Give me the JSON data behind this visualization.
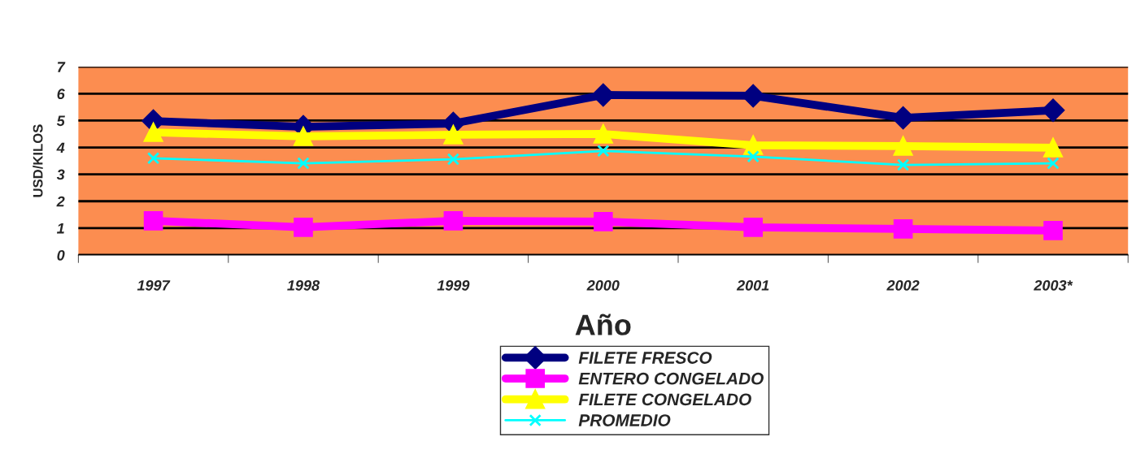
{
  "chart_data": {
    "type": "line",
    "xlabel": "Año",
    "ylabel": "USD/KILOS",
    "categories": [
      "1997",
      "1998",
      "1999",
      "2000",
      "2001",
      "2002",
      "2003*"
    ],
    "series": [
      {
        "name": "FILETE FRESCO",
        "color": "#000080",
        "marker": "diamond",
        "values": [
          4.98,
          4.77,
          4.89,
          5.95,
          5.92,
          5.1,
          5.38
        ]
      },
      {
        "name": "ENTERO CONGELADO",
        "color": "#ff00ff",
        "marker": "square",
        "values": [
          1.27,
          1.03,
          1.27,
          1.24,
          1.03,
          0.97,
          0.91
        ]
      },
      {
        "name": "FILETE CONGELADO",
        "color": "#ffff00",
        "marker": "triangle",
        "values": [
          4.56,
          4.41,
          4.47,
          4.5,
          4.08,
          4.05,
          3.99
        ]
      },
      {
        "name": "PROMEDIO",
        "color": "#00ffff",
        "marker": "cross",
        "values": [
          3.6,
          3.41,
          3.56,
          3.87,
          3.66,
          3.35,
          3.41
        ]
      }
    ],
    "ylim": [
      0,
      7
    ],
    "yticks": [
      0,
      1,
      2,
      3,
      4,
      5,
      6,
      7
    ],
    "grid": "y",
    "legend": "bottom"
  }
}
